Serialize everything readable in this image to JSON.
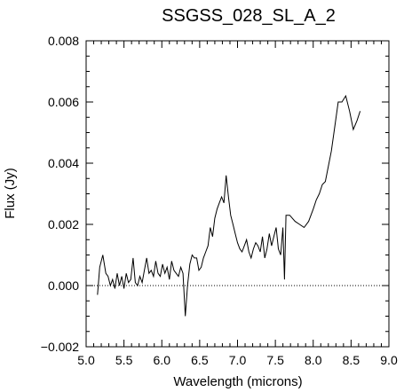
{
  "chart_data": {
    "type": "line",
    "title": "SSGSS_028_SL_A_2",
    "xlabel": "Wavelength (microns)",
    "ylabel": "Flux (Jy)",
    "xlim": [
      5.0,
      9.0
    ],
    "ylim": [
      -0.002,
      0.008
    ],
    "xticks": [
      "5.0",
      "5.5",
      "6.0",
      "6.5",
      "7.0",
      "7.5",
      "8.0",
      "8.5",
      "9.0"
    ],
    "yticks": [
      "−0.002",
      "0.000",
      "0.002",
      "0.004",
      "0.006",
      "0.008"
    ],
    "grid": false,
    "zero_line": {
      "y": 0.0,
      "style": "dotted"
    },
    "series": [
      {
        "x": [
          5.15,
          5.18,
          5.22,
          5.26,
          5.29,
          5.32,
          5.35,
          5.38,
          5.41,
          5.44,
          5.47,
          5.5,
          5.53,
          5.56,
          5.59,
          5.62,
          5.65,
          5.68,
          5.71,
          5.74,
          5.77,
          5.8,
          5.83,
          5.86,
          5.89,
          5.92,
          5.95,
          5.98,
          6.01,
          6.04,
          6.07,
          6.1,
          6.13,
          6.16,
          6.19,
          6.22,
          6.25,
          6.28,
          6.31,
          6.34,
          6.37,
          6.4,
          6.43,
          6.46,
          6.49,
          6.52,
          6.55,
          6.58,
          6.61,
          6.64,
          6.67,
          6.7,
          6.73,
          6.76,
          6.79,
          6.82,
          6.85,
          6.88,
          6.91,
          6.94,
          6.97,
          7.0,
          7.03,
          7.06,
          7.09,
          7.12,
          7.15,
          7.18,
          7.21,
          7.24,
          7.27,
          7.3,
          7.33,
          7.36,
          7.39,
          7.42,
          7.45,
          7.48,
          7.51,
          7.54,
          7.57,
          7.6,
          7.62,
          7.64,
          7.69,
          7.76,
          7.82,
          7.88,
          7.94,
          8.0,
          8.04,
          8.08,
          8.12,
          8.16,
          8.2,
          8.24,
          8.28,
          8.33,
          8.38,
          8.43,
          8.48,
          8.53,
          8.58,
          8.62
        ],
        "y": [
          -0.0003,
          0.0006,
          0.001,
          0.0004,
          0.0003,
          0.0,
          0.0002,
          -0.0001,
          0.0004,
          0.0,
          0.0003,
          -0.0001,
          0.0004,
          0.0001,
          0.0002,
          0.0009,
          0.0001,
          0.0,
          0.0003,
          0.0001,
          0.0005,
          0.0009,
          0.0004,
          0.0005,
          0.0003,
          0.0008,
          0.0004,
          0.0003,
          0.0007,
          0.0004,
          0.0006,
          0.0002,
          0.0008,
          0.0005,
          0.0004,
          0.0003,
          0.0006,
          0.0004,
          -0.001,
          0.0,
          0.0007,
          0.001,
          0.0009,
          0.0009,
          0.0005,
          0.0006,
          0.0009,
          0.0011,
          0.0013,
          0.0019,
          0.0016,
          0.0022,
          0.0025,
          0.0027,
          0.0029,
          0.0027,
          0.0036,
          0.0029,
          0.0023,
          0.002,
          0.0017,
          0.0014,
          0.0012,
          0.0011,
          0.0013,
          0.0015,
          0.0011,
          0.0009,
          0.0012,
          0.0014,
          0.0013,
          0.0011,
          0.0016,
          0.0009,
          0.0012,
          0.0017,
          0.0013,
          0.0016,
          0.0019,
          0.0012,
          0.001,
          0.0019,
          0.0002,
          0.0023,
          0.0023,
          0.0021,
          0.002,
          0.0019,
          0.0021,
          0.0025,
          0.0028,
          0.003,
          0.0033,
          0.0034,
          0.0039,
          0.0044,
          0.0051,
          0.006,
          0.006,
          0.0062,
          0.0057,
          0.0051,
          0.0054,
          0.0057
        ]
      }
    ]
  }
}
